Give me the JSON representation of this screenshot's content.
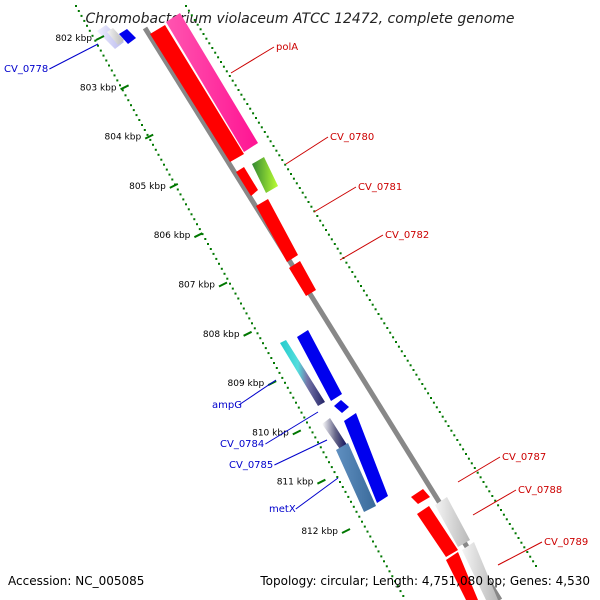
{
  "title": "Chromobacterium violaceum ATCC 12472, complete genome",
  "ticks": [
    {
      "label": "802 kbp",
      "kbp": 802
    },
    {
      "label": "803 kbp",
      "kbp": 803
    },
    {
      "label": "804 kbp",
      "kbp": 804
    },
    {
      "label": "805 kbp",
      "kbp": 805
    },
    {
      "label": "806 kbp",
      "kbp": 806
    },
    {
      "label": "807 kbp",
      "kbp": 807
    },
    {
      "label": "808 kbp",
      "kbp": 808
    },
    {
      "label": "809 kbp",
      "kbp": 809
    },
    {
      "label": "810 kbp",
      "kbp": 810
    },
    {
      "label": "811 kbp",
      "kbp": 811
    },
    {
      "label": "812 kbp",
      "kbp": 812
    }
  ],
  "gene_labels": [
    {
      "text": "CV_0778",
      "strand": "reverse"
    },
    {
      "text": "polA",
      "strand": "forward"
    },
    {
      "text": "CV_0780",
      "strand": "forward"
    },
    {
      "text": "CV_0781",
      "strand": "forward"
    },
    {
      "text": "CV_0782",
      "strand": "forward"
    },
    {
      "text": "ampG",
      "strand": "reverse"
    },
    {
      "text": "CV_0784",
      "strand": "reverse"
    },
    {
      "text": "CV_0785",
      "strand": "reverse"
    },
    {
      "text": "metX",
      "strand": "reverse"
    },
    {
      "text": "CV_0787",
      "strand": "forward"
    },
    {
      "text": "CV_0788",
      "strand": "forward"
    },
    {
      "text": "CV_0789",
      "strand": "forward"
    }
  ],
  "footer": {
    "accession": "Accession: NC_005085",
    "info": "Topology: circular; Length: 4,751,080 bp; Genes: 4,530"
  },
  "colors": {
    "forward_gene": "#ff0000",
    "reverse_gene": "#0000ee",
    "forward_label": "#cc0000",
    "reverse_label": "#0000cc",
    "backbone": "#888888",
    "gc_dots": "#007700"
  }
}
